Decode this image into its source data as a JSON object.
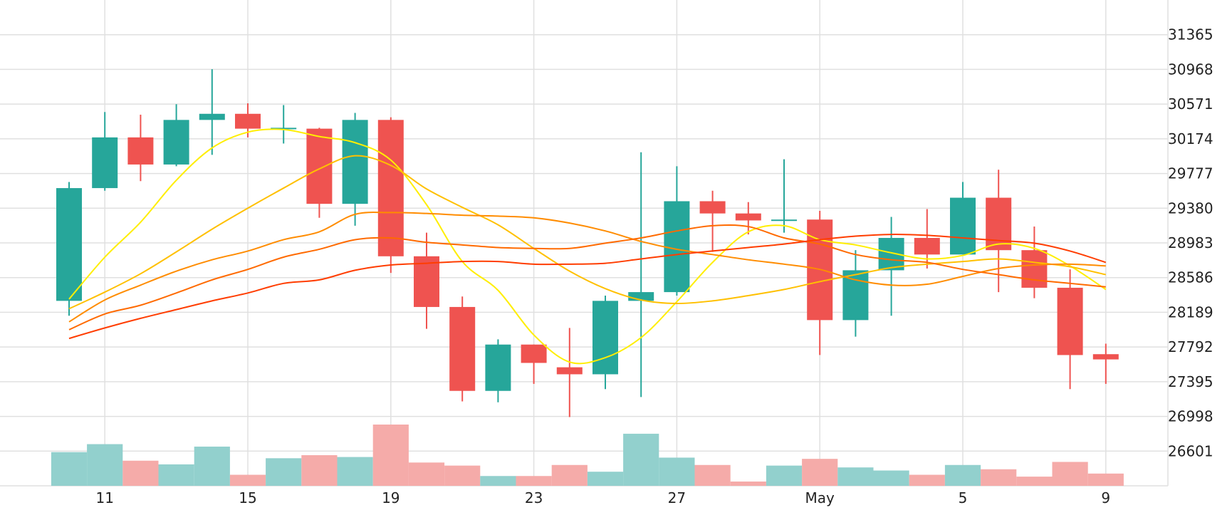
{
  "chart_data": {
    "type": "candlestick",
    "x_tick_labels": [
      "11",
      "15",
      "19",
      "23",
      "27",
      "May",
      "5",
      "9"
    ],
    "y_tick_labels": [
      "31365",
      "30968",
      "30571",
      "30174",
      "29777",
      "29380",
      "28983",
      "28586",
      "28189",
      "27792",
      "27395",
      "26998",
      "26601"
    ],
    "y_range": [
      26204,
      31762
    ],
    "colors": {
      "up": "#26a69a",
      "down": "#ef5350",
      "up_volume": "#92d0cd",
      "down_volume": "#f5aba9",
      "grid": "#e0e0e0"
    },
    "candles": [
      {
        "o": 28320,
        "h": 29680,
        "l": 28150,
        "c": 29610
      },
      {
        "o": 29610,
        "h": 30480,
        "l": 29580,
        "c": 30190
      },
      {
        "o": 30190,
        "h": 30450,
        "l": 29690,
        "c": 29880
      },
      {
        "o": 29880,
        "h": 30570,
        "l": 29860,
        "c": 30390
      },
      {
        "o": 30390,
        "h": 30970,
        "l": 29990,
        "c": 30460
      },
      {
        "o": 30460,
        "h": 30580,
        "l": 30190,
        "c": 30290
      },
      {
        "o": 30290,
        "h": 30560,
        "l": 30120,
        "c": 30300
      },
      {
        "o": 30290,
        "h": 30300,
        "l": 29270,
        "c": 29430
      },
      {
        "o": 29430,
        "h": 30470,
        "l": 29180,
        "c": 30390
      },
      {
        "o": 30390,
        "h": 30420,
        "l": 28640,
        "c": 28830
      },
      {
        "o": 28830,
        "h": 29100,
        "l": 28000,
        "c": 28250
      },
      {
        "o": 28250,
        "h": 28370,
        "l": 27170,
        "c": 27290
      },
      {
        "o": 27290,
        "h": 27880,
        "l": 27160,
        "c": 27820
      },
      {
        "o": 27820,
        "h": 27820,
        "l": 27370,
        "c": 27610
      },
      {
        "o": 27560,
        "h": 28010,
        "l": 26990,
        "c": 27480
      },
      {
        "o": 27480,
        "h": 28380,
        "l": 27310,
        "c": 28320
      },
      {
        "o": 28320,
        "h": 30020,
        "l": 27220,
        "c": 28420
      },
      {
        "o": 28420,
        "h": 29860,
        "l": 28380,
        "c": 29460
      },
      {
        "o": 29460,
        "h": 29580,
        "l": 28880,
        "c": 29320
      },
      {
        "o": 29320,
        "h": 29450,
        "l": 29080,
        "c": 29240
      },
      {
        "o": 29240,
        "h": 29940,
        "l": 29100,
        "c": 29250
      },
      {
        "o": 29250,
        "h": 29350,
        "l": 27700,
        "c": 28100
      },
      {
        "o": 28100,
        "h": 28900,
        "l": 27910,
        "c": 28670
      },
      {
        "o": 28670,
        "h": 29280,
        "l": 28150,
        "c": 29040
      },
      {
        "o": 29040,
        "h": 29370,
        "l": 28690,
        "c": 28850
      },
      {
        "o": 28850,
        "h": 29680,
        "l": 28860,
        "c": 29500
      },
      {
        "o": 29500,
        "h": 29820,
        "l": 28420,
        "c": 28900
      },
      {
        "o": 28900,
        "h": 29170,
        "l": 28350,
        "c": 28470
      },
      {
        "o": 28470,
        "h": 28680,
        "l": 27310,
        "c": 27700
      },
      {
        "o": 27710,
        "h": 27830,
        "l": 27370,
        "c": 27650
      }
    ],
    "volumes": [
      0.55,
      0.68,
      0.41,
      0.35,
      0.64,
      0.18,
      0.45,
      0.5,
      0.47,
      1.0,
      0.38,
      0.33,
      0.16,
      0.16,
      0.34,
      0.23,
      0.85,
      0.46,
      0.34,
      0.07,
      0.33,
      0.44,
      0.3,
      0.25,
      0.18,
      0.34,
      0.27,
      0.15,
      0.39,
      0.2
    ],
    "moving_averages": [
      {
        "color": "#ffee00",
        "values": [
          28340,
          28820,
          29220,
          29700,
          30070,
          30250,
          30280,
          30200,
          30130,
          29930,
          29420,
          28770,
          28440,
          27930,
          27620,
          27670,
          27900,
          28310,
          28760,
          29110,
          29180,
          29020,
          28960,
          28870,
          28800,
          28840,
          28970,
          28920,
          28720,
          28450
        ]
      },
      {
        "color": "#ffc000",
        "values": [
          28230,
          28420,
          28630,
          28880,
          29140,
          29380,
          29610,
          29830,
          29980,
          29870,
          29600,
          29390,
          29190,
          28920,
          28660,
          28460,
          28330,
          28290,
          28320,
          28380,
          28450,
          28540,
          28620,
          28700,
          28740,
          28770,
          28800,
          28760,
          28710,
          28620
        ]
      },
      {
        "color": "#ff8c00",
        "values": [
          28080,
          28330,
          28500,
          28660,
          28790,
          28890,
          29020,
          29110,
          29310,
          29330,
          29320,
          29300,
          29290,
          29270,
          29210,
          29120,
          29000,
          28910,
          28850,
          28790,
          28740,
          28680,
          28560,
          28500,
          28510,
          28600,
          28690,
          28730,
          28740,
          28720
        ]
      },
      {
        "color": "#ff6a00",
        "values": [
          27990,
          28170,
          28270,
          28410,
          28560,
          28680,
          28820,
          28910,
          29020,
          29040,
          28990,
          28960,
          28930,
          28920,
          28920,
          28980,
          29040,
          29120,
          29180,
          29170,
          29040,
          28970,
          28850,
          28790,
          28760,
          28680,
          28620,
          28560,
          28520,
          28480
        ]
      },
      {
        "color": "#ff3d00",
        "values": [
          27890,
          28010,
          28120,
          28220,
          28320,
          28410,
          28520,
          28560,
          28670,
          28730,
          28750,
          28770,
          28770,
          28740,
          28740,
          28750,
          28800,
          28850,
          28890,
          28930,
          28970,
          29020,
          29060,
          29080,
          29070,
          29040,
          29010,
          28980,
          28890,
          28760
        ]
      }
    ]
  }
}
